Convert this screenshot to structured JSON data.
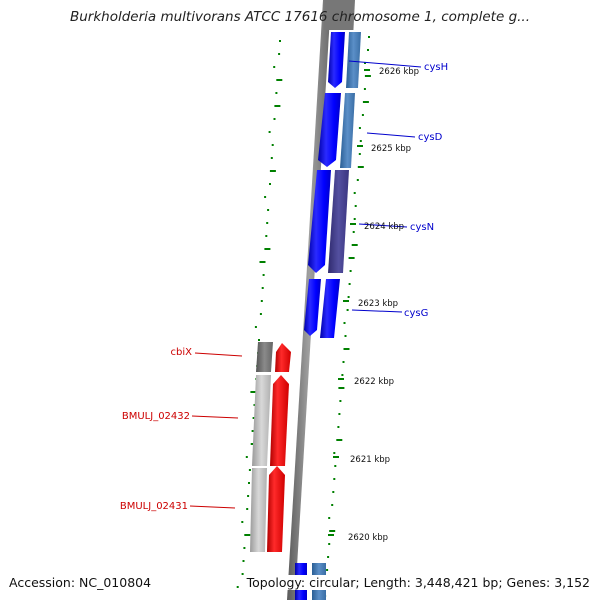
{
  "title": "Burkholderia multivorans ATCC 17616 chromosome 1, complete g...",
  "accession": "Accession: NC_010804",
  "topology": "Topology: circular; Length: 3,448,421 bp; Genes: 3,152",
  "ticks": [
    "2626 kbp",
    "2625 kbp",
    "2624 kbp",
    "2623 kbp",
    "2622 kbp",
    "2621 kbp",
    "2620 kbp"
  ],
  "genes_forward": [
    "cysH",
    "cysD",
    "cysN",
    "cysG"
  ],
  "genes_reverse": [
    "cbiX",
    "BMULJ_02432",
    "BMULJ_02431"
  ],
  "colors": {
    "forward_gene": "#0000ff",
    "reverse_gene": "#ff0000",
    "forward_label": "#0000cc",
    "reverse_label": "#cc0000",
    "backbone": "#808080",
    "dots": "#008000"
  }
}
